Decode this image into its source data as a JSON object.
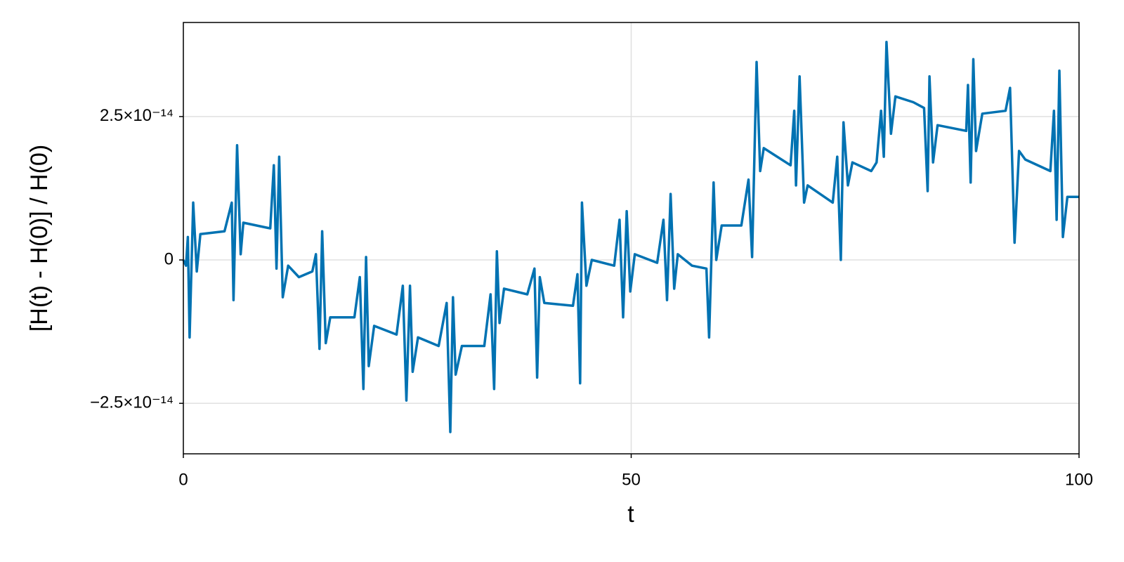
{
  "chart_data": {
    "type": "line",
    "xlabel": "t",
    "ylabel": "[H(t) - H(0)] / H(0)",
    "x": [
      0,
      0.3,
      0.5,
      0.7,
      1.1,
      1.5,
      1.9,
      4.6,
      5.4,
      5.6,
      6.0,
      6.4,
      6.7,
      9.7,
      10.1,
      10.4,
      10.7,
      11.1,
      11.7,
      12.9,
      14.4,
      14.8,
      15.2,
      15.5,
      15.9,
      16.4,
      19.1,
      19.7,
      20.1,
      20.4,
      20.7,
      21.3,
      23.8,
      24.5,
      24.9,
      25.3,
      25.6,
      26.2,
      28.5,
      29.4,
      29.8,
      30.1,
      30.4,
      31.1,
      33.6,
      34.3,
      34.7,
      35.0,
      35.3,
      35.8,
      38.4,
      39.2,
      39.5,
      39.8,
      40.3,
      43.5,
      44.0,
      44.3,
      44.5,
      45.0,
      45.6,
      48.1,
      48.7,
      49.1,
      49.5,
      49.9,
      50.4,
      52.9,
      53.6,
      54.0,
      54.4,
      54.8,
      55.2,
      56.8,
      58.4,
      58.7,
      59.2,
      59.5,
      60.1,
      62.3,
      63.1,
      63.5,
      64.0,
      64.4,
      64.8,
      65.8,
      67.8,
      68.2,
      68.4,
      68.8,
      69.3,
      69.7,
      72.5,
      73.0,
      73.4,
      73.7,
      74.2,
      74.7,
      76.8,
      77.4,
      77.9,
      78.2,
      78.5,
      79.0,
      79.5,
      81.5,
      82.7,
      83.1,
      83.3,
      83.7,
      84.2,
      87.4,
      87.6,
      87.9,
      88.2,
      88.5,
      89.2,
      91.8,
      92.3,
      92.8,
      93.3,
      94.0,
      96.8,
      97.2,
      97.5,
      97.8,
      98.2,
      98.7,
      100
    ],
    "series": [
      {
        "color": "#0072b2",
        "values": [
          0,
          -1e-15,
          4e-15,
          -1.35e-14,
          1e-14,
          -2e-15,
          4.5e-15,
          5e-15,
          1e-14,
          -7e-15,
          2e-14,
          1e-15,
          6.5e-15,
          5.5e-15,
          1.65e-14,
          -1.5e-15,
          1.8e-14,
          -6.5e-15,
          -1e-15,
          -3e-15,
          -2e-15,
          1e-15,
          -1.55e-14,
          5e-15,
          -1.45e-14,
          -1e-14,
          -1e-14,
          -3e-15,
          -2.25e-14,
          5e-16,
          -1.85e-14,
          -1.15e-14,
          -1.3e-14,
          -4.5e-15,
          -2.45e-14,
          -4.5e-15,
          -1.95e-14,
          -1.35e-14,
          -1.5e-14,
          -7.5e-15,
          -3e-14,
          -6.5e-15,
          -2e-14,
          -1.5e-14,
          -1.5e-14,
          -6e-15,
          -2.25e-14,
          1.5e-15,
          -1.1e-14,
          -5e-15,
          -6e-15,
          -1.5e-15,
          -2.05e-14,
          -3e-15,
          -7.5e-15,
          -8e-15,
          -2.5e-15,
          -2.15e-14,
          1e-14,
          -4.5e-15,
          0,
          -1e-15,
          7e-15,
          -1e-14,
          8.5e-15,
          -5.5e-15,
          1e-15,
          -5e-16,
          7e-15,
          -7e-15,
          1.15e-14,
          -5e-15,
          1e-15,
          -1e-15,
          -1.5e-15,
          -1.35e-14,
          1.35e-14,
          0,
          6e-15,
          6e-15,
          1.4e-14,
          5e-16,
          3.45e-14,
          1.55e-14,
          1.95e-14,
          1.85e-14,
          1.65e-14,
          2.6e-14,
          1.3e-14,
          3.2e-14,
          1e-14,
          1.3e-14,
          1e-14,
          1.8e-14,
          0,
          2.4e-14,
          1.3e-14,
          1.7e-14,
          1.55e-14,
          1.7e-14,
          2.6e-14,
          1.8e-14,
          3.8e-14,
          2.2e-14,
          2.85e-14,
          2.75e-14,
          2.65e-14,
          1.2e-14,
          3.2e-14,
          1.7e-14,
          2.35e-14,
          2.25e-14,
          3.05e-14,
          1.35e-14,
          3.5e-14,
          1.9e-14,
          2.55e-14,
          2.6e-14,
          3e-14,
          3e-15,
          1.9e-14,
          1.75e-14,
          1.55e-14,
          2.6e-14,
          7e-15,
          3.3e-14,
          4e-15,
          1.1e-14,
          1.1e-14
        ]
      }
    ],
    "xlim": [
      0,
      100
    ],
    "xticks": [
      0,
      50,
      100
    ],
    "ylim": [
      -3.38e-14,
      4.14e-14
    ],
    "yticks": [
      {
        "value": -2.5e-14,
        "label": "−2.5×10⁻¹⁴"
      },
      0,
      {
        "value": 2.5e-14,
        "label": "2.5×10⁻¹⁴"
      }
    ],
    "grid": true
  }
}
